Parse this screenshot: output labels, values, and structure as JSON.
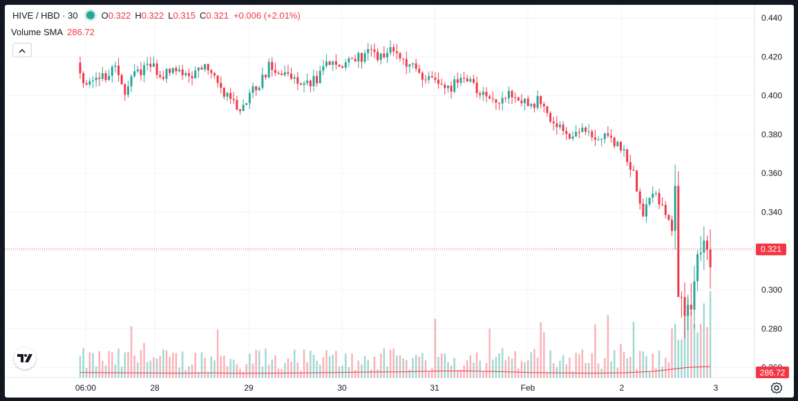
{
  "legend": {
    "symbol": "HIVE / HBD · 30",
    "o_label": "O",
    "o_value": "0.322",
    "h_label": "H",
    "h_value": "0.322",
    "l_label": "L",
    "l_value": "0.315",
    "c_label": "C",
    "c_value": "0.321",
    "change": "+0.006 (+2.01%)"
  },
  "volume_legend": {
    "label": "Volume SMA",
    "value": "286.72"
  },
  "icons": {
    "collapse": "chevron-up-icon",
    "logo": "tradingview-logo-icon",
    "settings": "gear-icon",
    "live": "live-dot-icon"
  },
  "colors": {
    "up": "#26a69a",
    "down": "#f23645",
    "grid": "#f0f3fa",
    "text": "#131722"
  },
  "chart_data": {
    "type": "candlestick",
    "y_ticks": [
      "0.440",
      "0.420",
      "0.400",
      "0.380",
      "0.360",
      "0.340",
      "0.320",
      "0.300",
      "0.280",
      "0.260"
    ],
    "ylim": [
      0.254,
      0.445
    ],
    "x_labels": [
      "06:00",
      "28",
      "29",
      "30",
      "31",
      "Feb",
      "2",
      "3"
    ],
    "last_price": "0.321",
    "volume_sma_badge": "286.72",
    "price_path": [
      [
        0,
        0.417
      ],
      [
        3,
        0.405
      ],
      [
        6,
        0.412
      ],
      [
        9,
        0.409
      ],
      [
        12,
        0.414
      ],
      [
        15,
        0.403
      ],
      [
        18,
        0.412
      ],
      [
        21,
        0.414
      ],
      [
        24,
        0.415
      ],
      [
        27,
        0.411
      ],
      [
        30,
        0.413
      ],
      [
        33,
        0.412
      ],
      [
        36,
        0.411
      ],
      [
        39,
        0.416
      ],
      [
        42,
        0.41
      ],
      [
        45,
        0.404
      ],
      [
        48,
        0.397
      ],
      [
        51,
        0.395
      ],
      [
        54,
        0.401
      ],
      [
        57,
        0.406
      ],
      [
        60,
        0.415
      ],
      [
        63,
        0.411
      ],
      [
        66,
        0.411
      ],
      [
        69,
        0.408
      ],
      [
        72,
        0.406
      ],
      [
        75,
        0.408
      ],
      [
        78,
        0.418
      ],
      [
        81,
        0.415
      ],
      [
        84,
        0.417
      ],
      [
        87,
        0.419
      ],
      [
        90,
        0.421
      ],
      [
        93,
        0.421
      ],
      [
        96,
        0.421
      ],
      [
        99,
        0.423
      ],
      [
        102,
        0.418
      ],
      [
        105,
        0.414
      ],
      [
        108,
        0.411
      ],
      [
        111,
        0.408
      ],
      [
        114,
        0.406
      ],
      [
        117,
        0.405
      ],
      [
        120,
        0.409
      ],
      [
        123,
        0.406
      ],
      [
        126,
        0.4
      ],
      [
        129,
        0.4
      ],
      [
        132,
        0.397
      ],
      [
        135,
        0.4
      ],
      [
        138,
        0.399
      ],
      [
        141,
        0.395
      ],
      [
        144,
        0.397
      ],
      [
        147,
        0.39
      ],
      [
        150,
        0.385
      ],
      [
        153,
        0.378
      ],
      [
        156,
        0.38
      ],
      [
        159,
        0.382
      ],
      [
        162,
        0.378
      ],
      [
        165,
        0.378
      ],
      [
        168,
        0.375
      ],
      [
        171,
        0.37
      ],
      [
        174,
        0.36
      ],
      [
        177,
        0.34
      ],
      [
        180,
        0.35
      ],
      [
        183,
        0.345
      ],
      [
        186,
        0.33
      ],
      [
        187,
        0.362
      ],
      [
        188,
        0.3
      ],
      [
        189,
        0.296
      ],
      [
        191,
        0.297
      ],
      [
        193,
        0.3
      ],
      [
        195,
        0.319
      ],
      [
        197,
        0.321
      ]
    ],
    "volume_sma_path": [
      [
        0,
        55
      ],
      [
        10,
        52
      ],
      [
        20,
        50
      ],
      [
        30,
        48
      ],
      [
        40,
        50
      ],
      [
        50,
        47
      ],
      [
        60,
        48
      ],
      [
        70,
        50
      ],
      [
        80,
        55
      ],
      [
        90,
        60
      ],
      [
        100,
        62
      ],
      [
        110,
        70
      ],
      [
        120,
        72
      ],
      [
        130,
        65
      ],
      [
        140,
        55
      ],
      [
        150,
        50
      ],
      [
        160,
        48
      ],
      [
        170,
        52
      ],
      [
        180,
        70
      ],
      [
        190,
        110
      ],
      [
        197,
        120
      ]
    ],
    "volume_max": 900
  }
}
